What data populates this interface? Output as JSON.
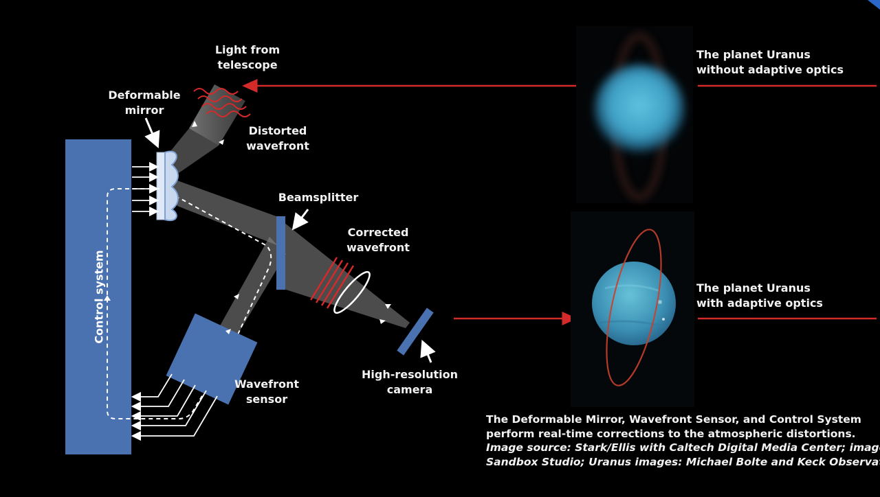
{
  "labels": {
    "light_from_telescope": [
      "Light from",
      "telescope"
    ],
    "deformable_mirror": [
      "Deformable",
      "mirror"
    ],
    "distorted_wavefront": [
      "Distorted",
      "wavefront"
    ],
    "beamsplitter": "Beamsplitter",
    "corrected_wavefront": [
      "Corrected",
      "wavefront"
    ],
    "control_system": "Control system",
    "wavefront_sensor": [
      "Wavefront",
      "sensor"
    ],
    "camera": [
      "High-resolution",
      "camera"
    ],
    "uranus_without": [
      "The planet Uranus",
      "without adaptive optics"
    ],
    "uranus_with": [
      "The planet Uranus",
      "with adaptive optics"
    ]
  },
  "caption": {
    "bold": [
      "The Deformable Mirror, Wavefront Sensor, and Control System",
      "perform real-time corrections to the atmospheric distortions."
    ],
    "credit": [
      "Image source: Stark/Ellis with Caltech Digital Media Center; image:",
      "Sandbox Studio; Uranus images: Michael Bolte and Keck Observatory"
    ]
  },
  "colors": {
    "background": "#000000",
    "component_blue": "#4a72b0",
    "beam_gray": "#8a8a8a",
    "arrow_red": "#d42a2a",
    "planet_cyan": "#4aa6c4",
    "text": "#f2f2f2"
  }
}
